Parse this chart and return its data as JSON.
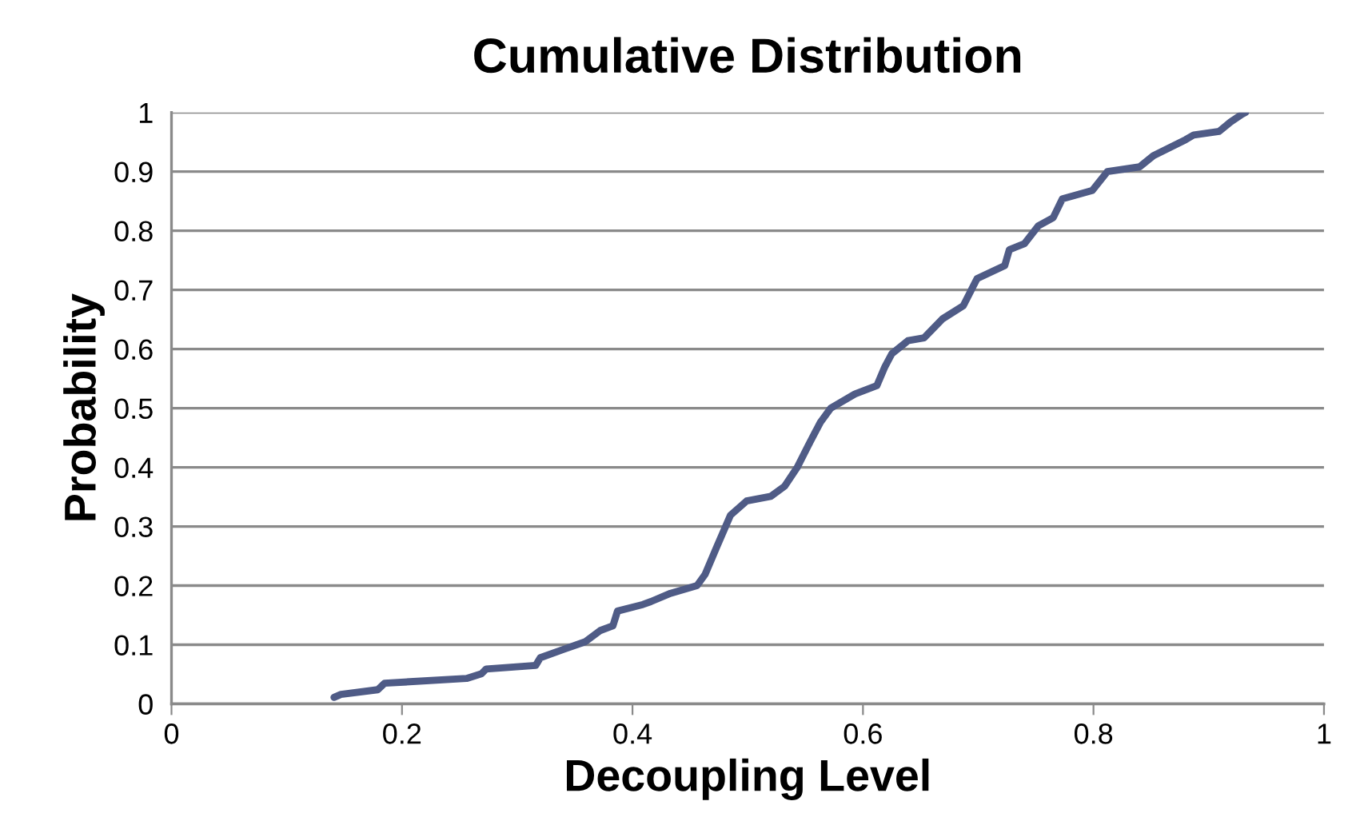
{
  "chart_data": {
    "type": "line",
    "title": "Cumulative Distribution",
    "xlabel": "Decoupling Level",
    "ylabel": "Probability",
    "xlim": [
      0,
      1
    ],
    "xticks": [
      0,
      0.2,
      0.4,
      0.6,
      0.8,
      1
    ],
    "ylim": [
      0,
      1
    ],
    "yticks": [
      0,
      0.1,
      0.2,
      0.3,
      0.4,
      0.5,
      0.6,
      0.7,
      0.8,
      0.9,
      1
    ],
    "grid": "y",
    "legend": false,
    "marker": "none",
    "line_style": "solid",
    "series": [
      {
        "color": "#4f5b86",
        "x": [
          0.141,
          0.147,
          0.179,
          0.185,
          0.256,
          0.269,
          0.273,
          0.316,
          0.32,
          0.34,
          0.359,
          0.372,
          0.383,
          0.387,
          0.409,
          0.416,
          0.433,
          0.456,
          0.463,
          0.473,
          0.485,
          0.499,
          0.52,
          0.532,
          0.543,
          0.552,
          0.563,
          0.572,
          0.593,
          0.612,
          0.619,
          0.625,
          0.639,
          0.653,
          0.669,
          0.687,
          0.699,
          0.723,
          0.727,
          0.74,
          0.752,
          0.765,
          0.773,
          0.799,
          0.812,
          0.84,
          0.852,
          0.88,
          0.887,
          0.909,
          0.919,
          0.929,
          0.932
        ],
        "values": [
          0.011,
          0.016,
          0.024,
          0.035,
          0.043,
          0.051,
          0.059,
          0.065,
          0.078,
          0.092,
          0.105,
          0.124,
          0.132,
          0.157,
          0.168,
          0.173,
          0.187,
          0.2,
          0.219,
          0.265,
          0.319,
          0.343,
          0.351,
          0.368,
          0.4,
          0.435,
          0.476,
          0.5,
          0.524,
          0.538,
          0.57,
          0.592,
          0.614,
          0.619,
          0.651,
          0.673,
          0.719,
          0.741,
          0.768,
          0.778,
          0.808,
          0.822,
          0.854,
          0.868,
          0.9,
          0.908,
          0.927,
          0.954,
          0.962,
          0.968,
          0.984,
          0.997,
          1.0
        ]
      }
    ]
  }
}
